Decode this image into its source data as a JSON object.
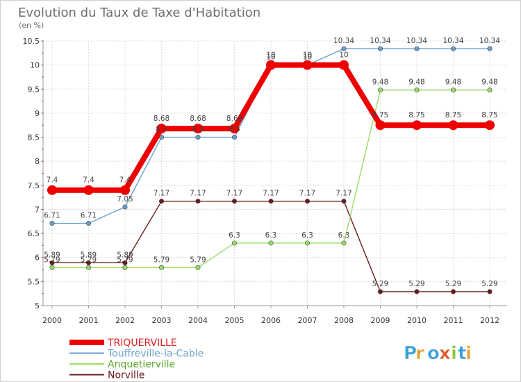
{
  "chart_data": {
    "type": "line",
    "title": "Evolution du Taux de Taxe d'Habitation",
    "ylabel": "(en %)",
    "xlabel": "",
    "ylim": [
      5,
      10.5
    ],
    "yticks": [
      "5",
      "5.5",
      "6",
      "6.5",
      "7",
      "7.5",
      "8",
      "8.5",
      "9",
      "9.5",
      "10",
      "10.5"
    ],
    "categories": [
      "2000",
      "2001",
      "2002",
      "2003",
      "2004",
      "2005",
      "2006",
      "2007",
      "2008",
      "2009",
      "2010",
      "2011",
      "2012"
    ],
    "grid": true,
    "legend_position": "bottom-left",
    "series": [
      {
        "name": "Norville",
        "color": "#6b1a1a",
        "values": [
          5.89,
          5.89,
          5.89,
          7.17,
          7.17,
          7.17,
          7.17,
          7.17,
          7.17,
          5.29,
          5.29,
          5.29,
          5.29
        ],
        "labels": [
          "5.89",
          "5.89",
          "5.89",
          "7.17",
          "7.17",
          "7.17",
          "7.17",
          "7.17",
          "7.17",
          "5.29",
          "5.29",
          "5.29",
          "5.29"
        ]
      },
      {
        "name": "Anquetierville",
        "color": "#99dd66",
        "values": [
          5.79,
          5.79,
          5.79,
          5.79,
          5.79,
          6.3,
          6.3,
          6.3,
          6.3,
          9.48,
          9.48,
          9.48,
          9.48
        ],
        "labels": [
          "5.79",
          "5.79",
          "5.79",
          "5.79",
          "5.79",
          "6.3",
          "6.3",
          "6.3",
          "6.3",
          "9.48",
          "9.48",
          "9.48",
          "9.48"
        ]
      },
      {
        "name": "Touffreville-la-Cable",
        "color": "#6a9fcf",
        "values": [
          6.71,
          6.71,
          7.05,
          8.5,
          8.5,
          8.5,
          10,
          10,
          10.34,
          10.34,
          10.34,
          10.34,
          10.34
        ],
        "labels": [
          "6.71",
          "6.71",
          "7.05",
          "8.5",
          "8.5",
          "8.5",
          "10",
          "10",
          "10.34",
          "10.34",
          "10.34",
          "10.34",
          "10.34"
        ]
      },
      {
        "name": "TRIQUERVILLE",
        "color": "#ee0000",
        "values": [
          7.4,
          7.4,
          7.4,
          8.68,
          8.68,
          8.68,
          10,
          10,
          10,
          8.75,
          8.75,
          8.75,
          8.75
        ],
        "labels": [
          "7.4",
          "7.4",
          "7.4",
          "8.68",
          "8.68",
          "8.68",
          "10",
          "10",
          "10",
          "8.75",
          "8.75",
          "8.75",
          "8.75"
        ]
      }
    ],
    "legend_order": [
      "TRIQUERVILLE",
      "Touffreville-la-Cable",
      "Anquetierville",
      "Norville"
    ]
  },
  "logo": {
    "text": "Proxiti",
    "letters": [
      "P",
      "r",
      "o",
      "x",
      "i",
      "t",
      "i"
    ],
    "colors": [
      "#3aa0d8",
      "#e8a030",
      "#3aa0d8",
      "#e05a2a",
      "#8cc43c",
      "#3aa0d8",
      "#e8a030"
    ]
  }
}
